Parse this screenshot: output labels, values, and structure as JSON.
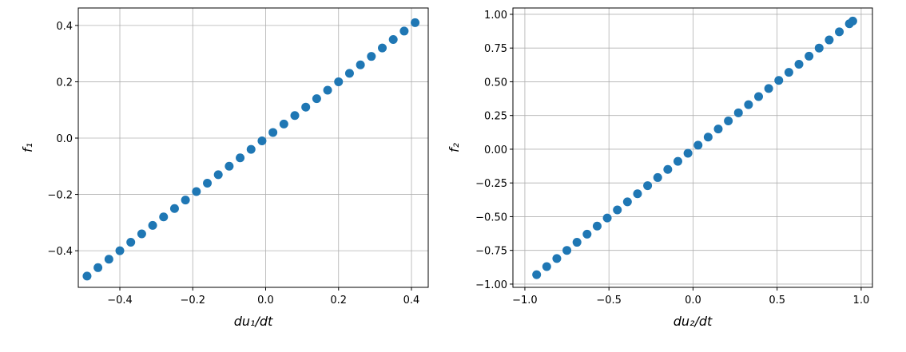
{
  "chart_data": [
    {
      "type": "scatter",
      "xlabel": "du₁/dt",
      "ylabel": "f₁",
      "color": "#1f77b4",
      "grid": true,
      "xlim": [
        -0.514,
        0.446
      ],
      "ylim": [
        -0.53,
        0.462
      ],
      "xticks": [
        {
          "value": -0.4,
          "label": "−0.4"
        },
        {
          "value": -0.2,
          "label": "−0.2"
        },
        {
          "value": 0,
          "label": "0.0"
        },
        0.2,
        0.4
      ],
      "yticks": [
        {
          "value": -0.4,
          "label": "−0.4"
        },
        {
          "value": -0.2,
          "label": "−0.2"
        },
        {
          "value": 0,
          "label": "0.0"
        },
        0.2,
        0.4
      ],
      "x": [
        -0.49,
        -0.46,
        -0.43,
        -0.4,
        -0.37,
        -0.34,
        -0.31,
        -0.28,
        -0.25,
        -0.22,
        -0.19,
        -0.16,
        -0.13,
        -0.1,
        -0.07,
        -0.04,
        -0.01,
        0.02,
        0.05,
        0.08,
        0.11,
        0.14,
        0.17,
        0.2,
        0.23,
        0.26,
        0.29,
        0.32,
        0.35,
        0.38,
        0.41
      ],
      "values": [
        -0.49,
        -0.46,
        -0.43,
        -0.4,
        -0.37,
        -0.34,
        -0.31,
        -0.28,
        -0.25,
        -0.22,
        -0.19,
        -0.16,
        -0.13,
        -0.1,
        -0.07,
        -0.04,
        -0.01,
        0.02,
        0.05,
        0.08,
        0.11,
        0.14,
        0.17,
        0.2,
        0.23,
        0.26,
        0.29,
        0.32,
        0.35,
        0.38,
        0.41
      ]
    },
    {
      "type": "scatter",
      "xlabel": "du₂/dt",
      "ylabel": "f₂",
      "color": "#1f77b4",
      "grid": true,
      "xlim": [
        -1.071,
        1.067
      ],
      "ylim": [
        -1.024,
        1.047
      ],
      "xticks": [
        {
          "value": -1.0,
          "label": "−1.0"
        },
        {
          "value": -0.5,
          "label": "−0.5"
        },
        {
          "value": 0,
          "label": "0.0"
        },
        0.5,
        {
          "value": 1.0,
          "label": "1.0"
        }
      ],
      "yticks": [
        {
          "value": -1.0,
          "label": "−1.00"
        },
        {
          "value": -0.75,
          "label": "−0.75"
        },
        {
          "value": -0.5,
          "label": "−0.50"
        },
        {
          "value": -0.25,
          "label": "−0.25"
        },
        {
          "value": 0,
          "label": "0.00"
        },
        0.25,
        {
          "value": 0.5,
          "label": "0.50"
        },
        0.75,
        {
          "value": 1.0,
          "label": "1.00"
        }
      ],
      "x": [
        -0.93,
        -0.87,
        -0.81,
        -0.75,
        -0.69,
        -0.63,
        -0.57,
        -0.51,
        -0.45,
        -0.39,
        -0.33,
        -0.27,
        -0.21,
        -0.15,
        -0.09,
        -0.03,
        0.03,
        0.09,
        0.15,
        0.21,
        0.27,
        0.33,
        0.39,
        0.45,
        0.51,
        0.57,
        0.63,
        0.69,
        0.75,
        0.81,
        0.87,
        0.93,
        0.95
      ],
      "values": [
        -0.93,
        -0.87,
        -0.81,
        -0.75,
        -0.69,
        -0.63,
        -0.57,
        -0.51,
        -0.45,
        -0.39,
        -0.33,
        -0.27,
        -0.21,
        -0.15,
        -0.09,
        -0.03,
        0.03,
        0.09,
        0.15,
        0.21,
        0.27,
        0.33,
        0.39,
        0.45,
        0.51,
        0.57,
        0.63,
        0.69,
        0.75,
        0.81,
        0.87,
        0.93,
        0.95
      ]
    }
  ]
}
